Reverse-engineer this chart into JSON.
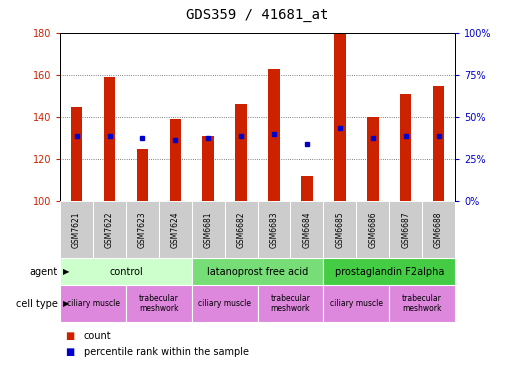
{
  "title": "GDS359 / 41681_at",
  "samples": [
    "GSM7621",
    "GSM7622",
    "GSM7623",
    "GSM7624",
    "GSM6681",
    "GSM6682",
    "GSM6683",
    "GSM6684",
    "GSM6685",
    "GSM6686",
    "GSM6687",
    "GSM6688"
  ],
  "counts": [
    145,
    159,
    125,
    139,
    131,
    146,
    163,
    112,
    180,
    140,
    151,
    155
  ],
  "percentile_values": [
    131,
    131,
    130,
    129,
    130,
    131,
    132,
    127,
    135,
    130,
    131,
    131
  ],
  "ymin": 100,
  "ymax": 180,
  "yticks_left": [
    100,
    120,
    140,
    160,
    180
  ],
  "yticks_right_pct": [
    0,
    25,
    50,
    75,
    100
  ],
  "bar_color": "#cc2200",
  "percentile_color": "#0000cc",
  "agent_groups": [
    {
      "label": "control",
      "start": 0,
      "end": 4,
      "color": "#ccffcc"
    },
    {
      "label": "latanoprost free acid",
      "start": 4,
      "end": 8,
      "color": "#77dd77"
    },
    {
      "label": "prostaglandin F2alpha",
      "start": 8,
      "end": 12,
      "color": "#44cc44"
    }
  ],
  "cell_type_groups": [
    {
      "label": "ciliary muscle",
      "start": 0,
      "end": 2,
      "color": "#dd88dd"
    },
    {
      "label": "trabecular\nmeshwork",
      "start": 2,
      "end": 4,
      "color": "#dd88dd"
    },
    {
      "label": "ciliary muscle",
      "start": 4,
      "end": 6,
      "color": "#dd88dd"
    },
    {
      "label": "trabecular\nmeshwork",
      "start": 6,
      "end": 8,
      "color": "#dd88dd"
    },
    {
      "label": "ciliary muscle",
      "start": 8,
      "end": 10,
      "color": "#dd88dd"
    },
    {
      "label": "trabecular\nmeshwork",
      "start": 10,
      "end": 12,
      "color": "#dd88dd"
    }
  ],
  "background_color": "#ffffff",
  "sample_bg_color": "#cccccc",
  "bar_width": 0.35,
  "title_fontsize": 10,
  "tick_fontsize": 7,
  "sample_fontsize": 5.5,
  "annotation_fontsize": 7,
  "legend_fontsize": 7
}
